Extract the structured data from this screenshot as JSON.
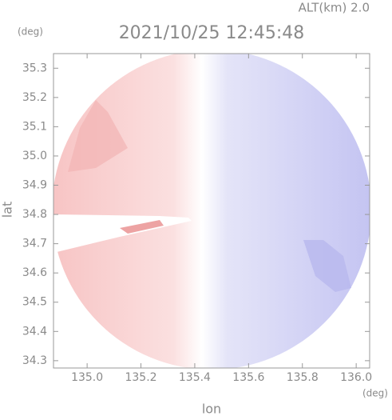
{
  "chart_data": {
    "type": "map",
    "title": "2021/10/25 12:45:48",
    "subtitle": "ALT(km) 2.0",
    "x_label": "lon",
    "x_unit": "(deg)",
    "y_label": "lat",
    "y_unit": "(deg)",
    "xlim": [
      134.875,
      136.05
    ],
    "ylim": [
      34.275,
      35.35
    ],
    "xticks": [
      {
        "value": 135,
        "label": "135.0"
      },
      135.2,
      135.4,
      135.6,
      135.8,
      {
        "value": 136,
        "label": "136.0"
      }
    ],
    "yticks": [
      34.3,
      34.4,
      34.5,
      34.6,
      34.7,
      34.8,
      34.9,
      {
        "value": 35,
        "label": "35.0"
      },
      35.1,
      35.2,
      35.3
    ]
  }
}
